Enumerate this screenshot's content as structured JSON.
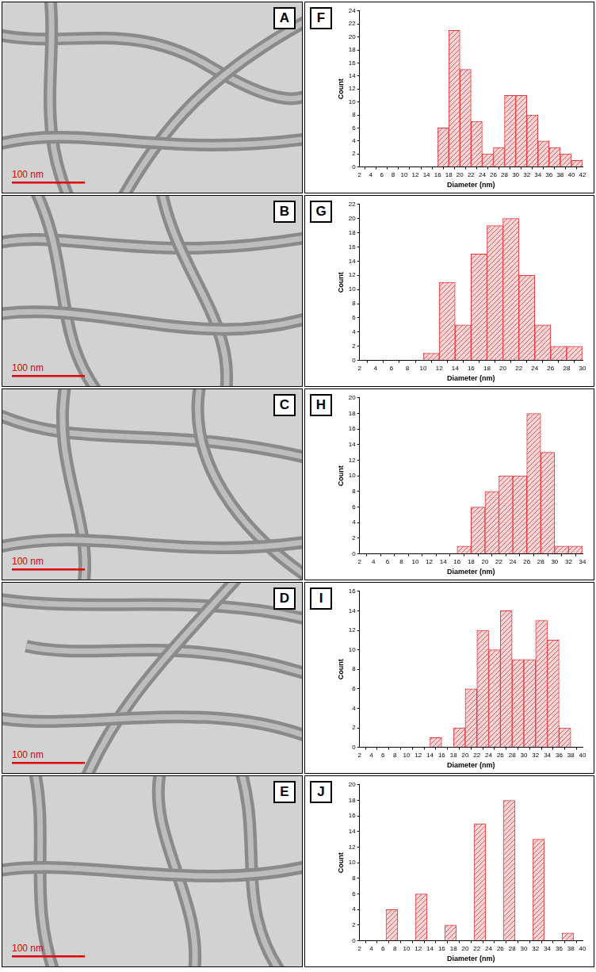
{
  "images": [
    {
      "panel_label": "A",
      "scale_bar": "100 nm"
    },
    {
      "panel_label": "B",
      "scale_bar": "100 nm"
    },
    {
      "panel_label": "C",
      "scale_bar": "100 nm"
    },
    {
      "panel_label": "D",
      "scale_bar": "100 nm"
    },
    {
      "panel_label": "E",
      "scale_bar": "100 nm"
    }
  ],
  "chart_data": [
    {
      "type": "histogram",
      "panel_label": "F",
      "x_label": "Diameter (nm)",
      "y_label": "Count",
      "bins": [
        16,
        18,
        20,
        22,
        24,
        26,
        28,
        30,
        32,
        34,
        36,
        38,
        40,
        42
      ],
      "counts": [
        6,
        21,
        15,
        7,
        2,
        3,
        11,
        11,
        8,
        4,
        3,
        2,
        1
      ],
      "color": "#e8383d",
      "xlim": [
        2,
        42
      ],
      "xticks": [
        2,
        4,
        6,
        8,
        10,
        12,
        14,
        16,
        18,
        20,
        22,
        24,
        26,
        28,
        30,
        32,
        34,
        36,
        38,
        40,
        42
      ],
      "ylim": [
        0,
        24
      ],
      "yticks": [
        0,
        2,
        4,
        6,
        8,
        10,
        12,
        14,
        16,
        18,
        20,
        22,
        24
      ],
      "grid": false
    },
    {
      "type": "histogram",
      "panel_label": "G",
      "x_label": "Diameter (nm)",
      "y_label": "Count",
      "bins": [
        10,
        12,
        14,
        16,
        18,
        20,
        22,
        24,
        26,
        28,
        30
      ],
      "counts": [
        1,
        11,
        5,
        15,
        19,
        20,
        12,
        5,
        2,
        2
      ],
      "color": "#e8383d",
      "xlim": [
        2,
        30
      ],
      "xticks": [
        2,
        4,
        6,
        8,
        10,
        12,
        14,
        16,
        18,
        20,
        22,
        24,
        26,
        28,
        30
      ],
      "ylim": [
        0,
        22
      ],
      "yticks": [
        0,
        2,
        4,
        6,
        8,
        10,
        12,
        14,
        16,
        18,
        20,
        22
      ],
      "grid": false
    },
    {
      "type": "histogram",
      "panel_label": "H",
      "x_label": "Diameter (nm)",
      "y_label": "Count",
      "bins": [
        16,
        18,
        20,
        22,
        24,
        26,
        28,
        30,
        32,
        34
      ],
      "counts": [
        1,
        6,
        8,
        10,
        10,
        18,
        13,
        1,
        1
      ],
      "color": "#e8383d",
      "xlim": [
        2,
        34
      ],
      "xticks": [
        2,
        4,
        6,
        8,
        10,
        12,
        14,
        16,
        18,
        20,
        22,
        24,
        26,
        28,
        30,
        32,
        34
      ],
      "ylim": [
        0,
        20
      ],
      "yticks": [
        0,
        2,
        4,
        6,
        8,
        10,
        12,
        14,
        16,
        18,
        20
      ],
      "grid": false
    },
    {
      "type": "histogram",
      "panel_label": "I",
      "x_label": "Diameter (nm)",
      "y_label": "Count",
      "bins": [
        14,
        16,
        18,
        20,
        22,
        24,
        26,
        28,
        30,
        32,
        34,
        36,
        38
      ],
      "counts": [
        1,
        0,
        2,
        6,
        12,
        10,
        14,
        9,
        9,
        13,
        11,
        2
      ],
      "color": "#e8383d",
      "xlim": [
        2,
        40
      ],
      "xticks": [
        2,
        4,
        6,
        8,
        10,
        12,
        14,
        16,
        18,
        20,
        22,
        24,
        26,
        28,
        30,
        32,
        34,
        36,
        38,
        40
      ],
      "ylim": [
        0,
        16
      ],
      "yticks": [
        0,
        2,
        4,
        6,
        8,
        10,
        12,
        14,
        16
      ],
      "grid": false
    },
    {
      "type": "histogram",
      "panel_label": "J",
      "x_label": "Diameter (nm)",
      "y_label": "Count",
      "bins": [
        5,
        10,
        15,
        20,
        25,
        30,
        35,
        40
      ],
      "counts": [
        4,
        6,
        2,
        15,
        18,
        13,
        1
      ],
      "color": "#e8383d",
      "xlim": [
        2,
        40
      ],
      "xticks": [
        2,
        4,
        6,
        8,
        10,
        12,
        14,
        16,
        18,
        20,
        22,
        24,
        26,
        28,
        30,
        32,
        34,
        36,
        38,
        40
      ],
      "ylim": [
        0,
        20
      ],
      "yticks": [
        0,
        2,
        4,
        6,
        8,
        10,
        12,
        14,
        16,
        18,
        20
      ],
      "grid": false
    }
  ]
}
